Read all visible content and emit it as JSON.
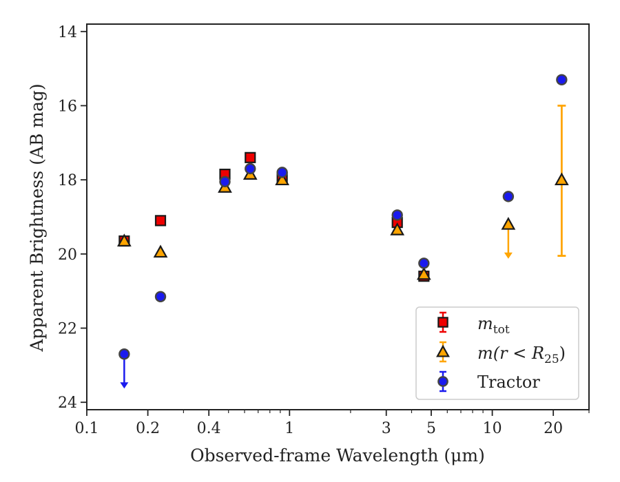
{
  "chart_data": {
    "type": "scatter",
    "title": "",
    "xlabel": "Observed-frame Wavelength (μm)",
    "ylabel": "Apparent Brightness (AB mag)",
    "xscale": "log",
    "yinverted": true,
    "xlim": [
      0.1,
      30
    ],
    "ylim": [
      24.2,
      13.8
    ],
    "xticks": [
      {
        "v": 0.1,
        "label": "0.1"
      },
      {
        "v": 0.2,
        "label": "0.2"
      },
      {
        "v": 0.4,
        "label": "0.4"
      },
      {
        "v": 1,
        "label": "1"
      },
      {
        "v": 3,
        "label": "3"
      },
      {
        "v": 5,
        "label": "5"
      },
      {
        "v": 10,
        "label": "10"
      },
      {
        "v": 20,
        "label": "20"
      }
    ],
    "yticks": [
      {
        "v": 14,
        "label": "14"
      },
      {
        "v": 16,
        "label": "16"
      },
      {
        "v": 18,
        "label": "18"
      },
      {
        "v": 20,
        "label": "20"
      },
      {
        "v": 22,
        "label": "22"
      },
      {
        "v": 24,
        "label": "24"
      }
    ],
    "legend_position": "lower right",
    "series": [
      {
        "name_main": "m",
        "name_sub": "tot",
        "marker": "square",
        "color": "#ee0000",
        "points": [
          {
            "x": 0.153,
            "y": 19.65
          },
          {
            "x": 0.231,
            "y": 19.1
          },
          {
            "x": 0.48,
            "y": 17.85
          },
          {
            "x": 0.64,
            "y": 17.4
          },
          {
            "x": 0.92,
            "y": 17.95
          },
          {
            "x": 3.4,
            "y": 19.15
          },
          {
            "x": 4.6,
            "y": 20.6
          }
        ]
      },
      {
        "name_main": "m(r < R",
        "name_sub": "25",
        "name_tail": ")",
        "marker": "triangle",
        "color": "#ffa500",
        "points": [
          {
            "x": 0.153,
            "y": 19.65
          },
          {
            "x": 0.231,
            "y": 19.95
          },
          {
            "x": 0.48,
            "y": 18.2
          },
          {
            "x": 0.64,
            "y": 17.85
          },
          {
            "x": 0.92,
            "y": 18.0
          },
          {
            "x": 3.4,
            "y": 19.35
          },
          {
            "x": 4.6,
            "y": 20.55
          },
          {
            "x": 12.0,
            "y": 19.2,
            "upper_limit": true
          },
          {
            "x": 22.0,
            "y": 18.0,
            "yerr": [
              16.0,
              20.05
            ]
          }
        ]
      },
      {
        "name_main": "Tractor",
        "marker": "circle",
        "color": "#1a1aee",
        "points": [
          {
            "x": 0.153,
            "y": 22.7,
            "upper_limit": true
          },
          {
            "x": 0.231,
            "y": 21.15
          },
          {
            "x": 0.48,
            "y": 18.05
          },
          {
            "x": 0.64,
            "y": 17.7
          },
          {
            "x": 0.92,
            "y": 17.8
          },
          {
            "x": 3.4,
            "y": 18.95
          },
          {
            "x": 4.6,
            "y": 20.25
          },
          {
            "x": 12.0,
            "y": 18.45
          },
          {
            "x": 22.0,
            "y": 15.3
          }
        ]
      }
    ]
  }
}
